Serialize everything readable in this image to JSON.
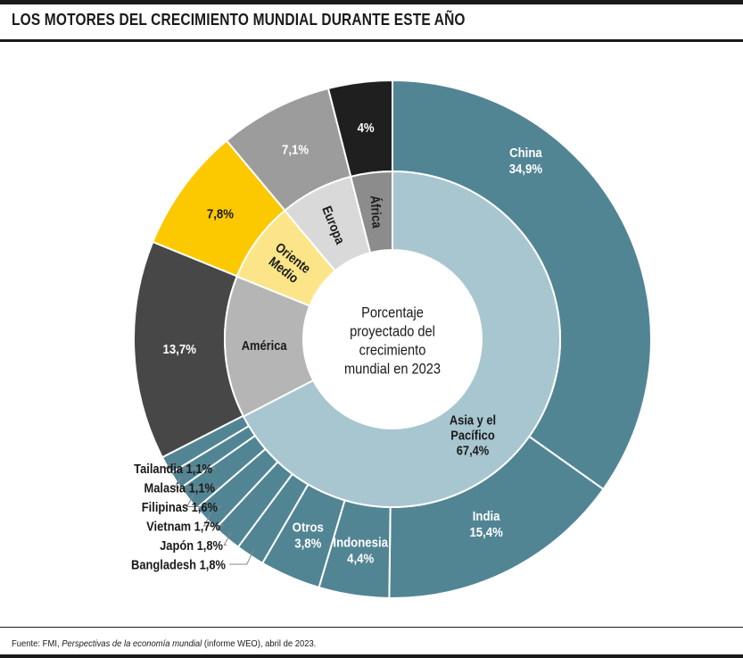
{
  "title": "LOS MOTORES DEL CRECIMIENTO MUNDIAL DURANTE ESTE AÑO",
  "source": {
    "prefix": "Fuente: FMI, ",
    "publication": "Perspectivas de la economía mundial",
    "suffix": " (informe WEO), abril de 2023."
  },
  "chart_data": {
    "type": "pie",
    "center_label": [
      "Porcentaje",
      "proyectado del",
      "crecimiento",
      "mundial en 2023"
    ],
    "inner_ring": [
      {
        "name": "Asia y el Pacífico",
        "value": 67.4,
        "label_lines": [
          "Asia y el",
          "Pacífico",
          "67,4%"
        ],
        "color": "#a8c6cf",
        "text_color": "#1a1a1a"
      },
      {
        "name": "América",
        "value": 13.7,
        "label_lines": [
          "América"
        ],
        "color": "#b5b5b5",
        "text_color": "#1a1a1a"
      },
      {
        "name": "Oriente Medio",
        "value": 7.8,
        "label_lines": [
          "Oriente",
          "Medio"
        ],
        "color": "#fbe588",
        "text_color": "#1a1a1a"
      },
      {
        "name": "Europa",
        "value": 7.1,
        "label_lines": [
          "Europa"
        ],
        "color": "#d9d9d9",
        "text_color": "#1a1a1a"
      },
      {
        "name": "África",
        "value": 4.0,
        "label_lines": [
          "África"
        ],
        "color": "#8c8c8c",
        "text_color": "#1a1a1a"
      }
    ],
    "outer_ring": [
      {
        "name": "China",
        "value": 34.9,
        "label_lines": [
          "China",
          "34,9%"
        ],
        "color": "#528594",
        "text_color": "#ffffff"
      },
      {
        "name": "India",
        "value": 15.4,
        "label_lines": [
          "India",
          "15,4%"
        ],
        "color": "#528594",
        "text_color": "#ffffff"
      },
      {
        "name": "Indonesia",
        "value": 4.4,
        "label_lines": [
          "Indonesia",
          "4,4%"
        ],
        "color": "#528594",
        "text_color": "#ffffff"
      },
      {
        "name": "Otros",
        "value": 3.8,
        "label_lines": [
          "Otros",
          "3,8%"
        ],
        "color": "#528594",
        "text_color": "#ffffff"
      },
      {
        "name": "Bangladesh",
        "value": 1.8,
        "label_lines": [
          "Bangladesh 1,8%"
        ],
        "callout": true,
        "color": "#528594",
        "text_color": "#1a1a1a"
      },
      {
        "name": "Japón",
        "value": 1.8,
        "label_lines": [
          "Japón 1,8%"
        ],
        "callout": true,
        "color": "#528594",
        "text_color": "#1a1a1a"
      },
      {
        "name": "Vietnam",
        "value": 1.7,
        "label_lines": [
          "Vietnam 1,7%"
        ],
        "callout": true,
        "color": "#528594",
        "text_color": "#1a1a1a"
      },
      {
        "name": "Filipinas",
        "value": 1.6,
        "label_lines": [
          "Filipinas 1,6%"
        ],
        "callout": true,
        "color": "#528594",
        "text_color": "#1a1a1a"
      },
      {
        "name": "Malasia",
        "value": 1.1,
        "label_lines": [
          "Malasia 1,1%"
        ],
        "callout": true,
        "color": "#528594",
        "text_color": "#1a1a1a"
      },
      {
        "name": "Tailandia",
        "value": 1.1,
        "label_lines": [
          "Tailandia 1,1%"
        ],
        "callout": true,
        "color": "#528594",
        "text_color": "#1a1a1a"
      },
      {
        "name": "América",
        "value": 13.7,
        "label_lines": [
          "13,7%"
        ],
        "color": "#474747",
        "text_color": "#ffffff"
      },
      {
        "name": "Oriente Medio",
        "value": 7.8,
        "label_lines": [
          "7,8%"
        ],
        "color": "#fcc800",
        "text_color": "#1a1a1a"
      },
      {
        "name": "Europa",
        "value": 7.1,
        "label_lines": [
          "7,1%"
        ],
        "color": "#9c9c9c",
        "text_color": "#ffffff"
      },
      {
        "name": "África",
        "value": 4.0,
        "label_lines": [
          "4%"
        ],
        "color": "#1f1f1f",
        "text_color": "#ffffff"
      }
    ]
  }
}
